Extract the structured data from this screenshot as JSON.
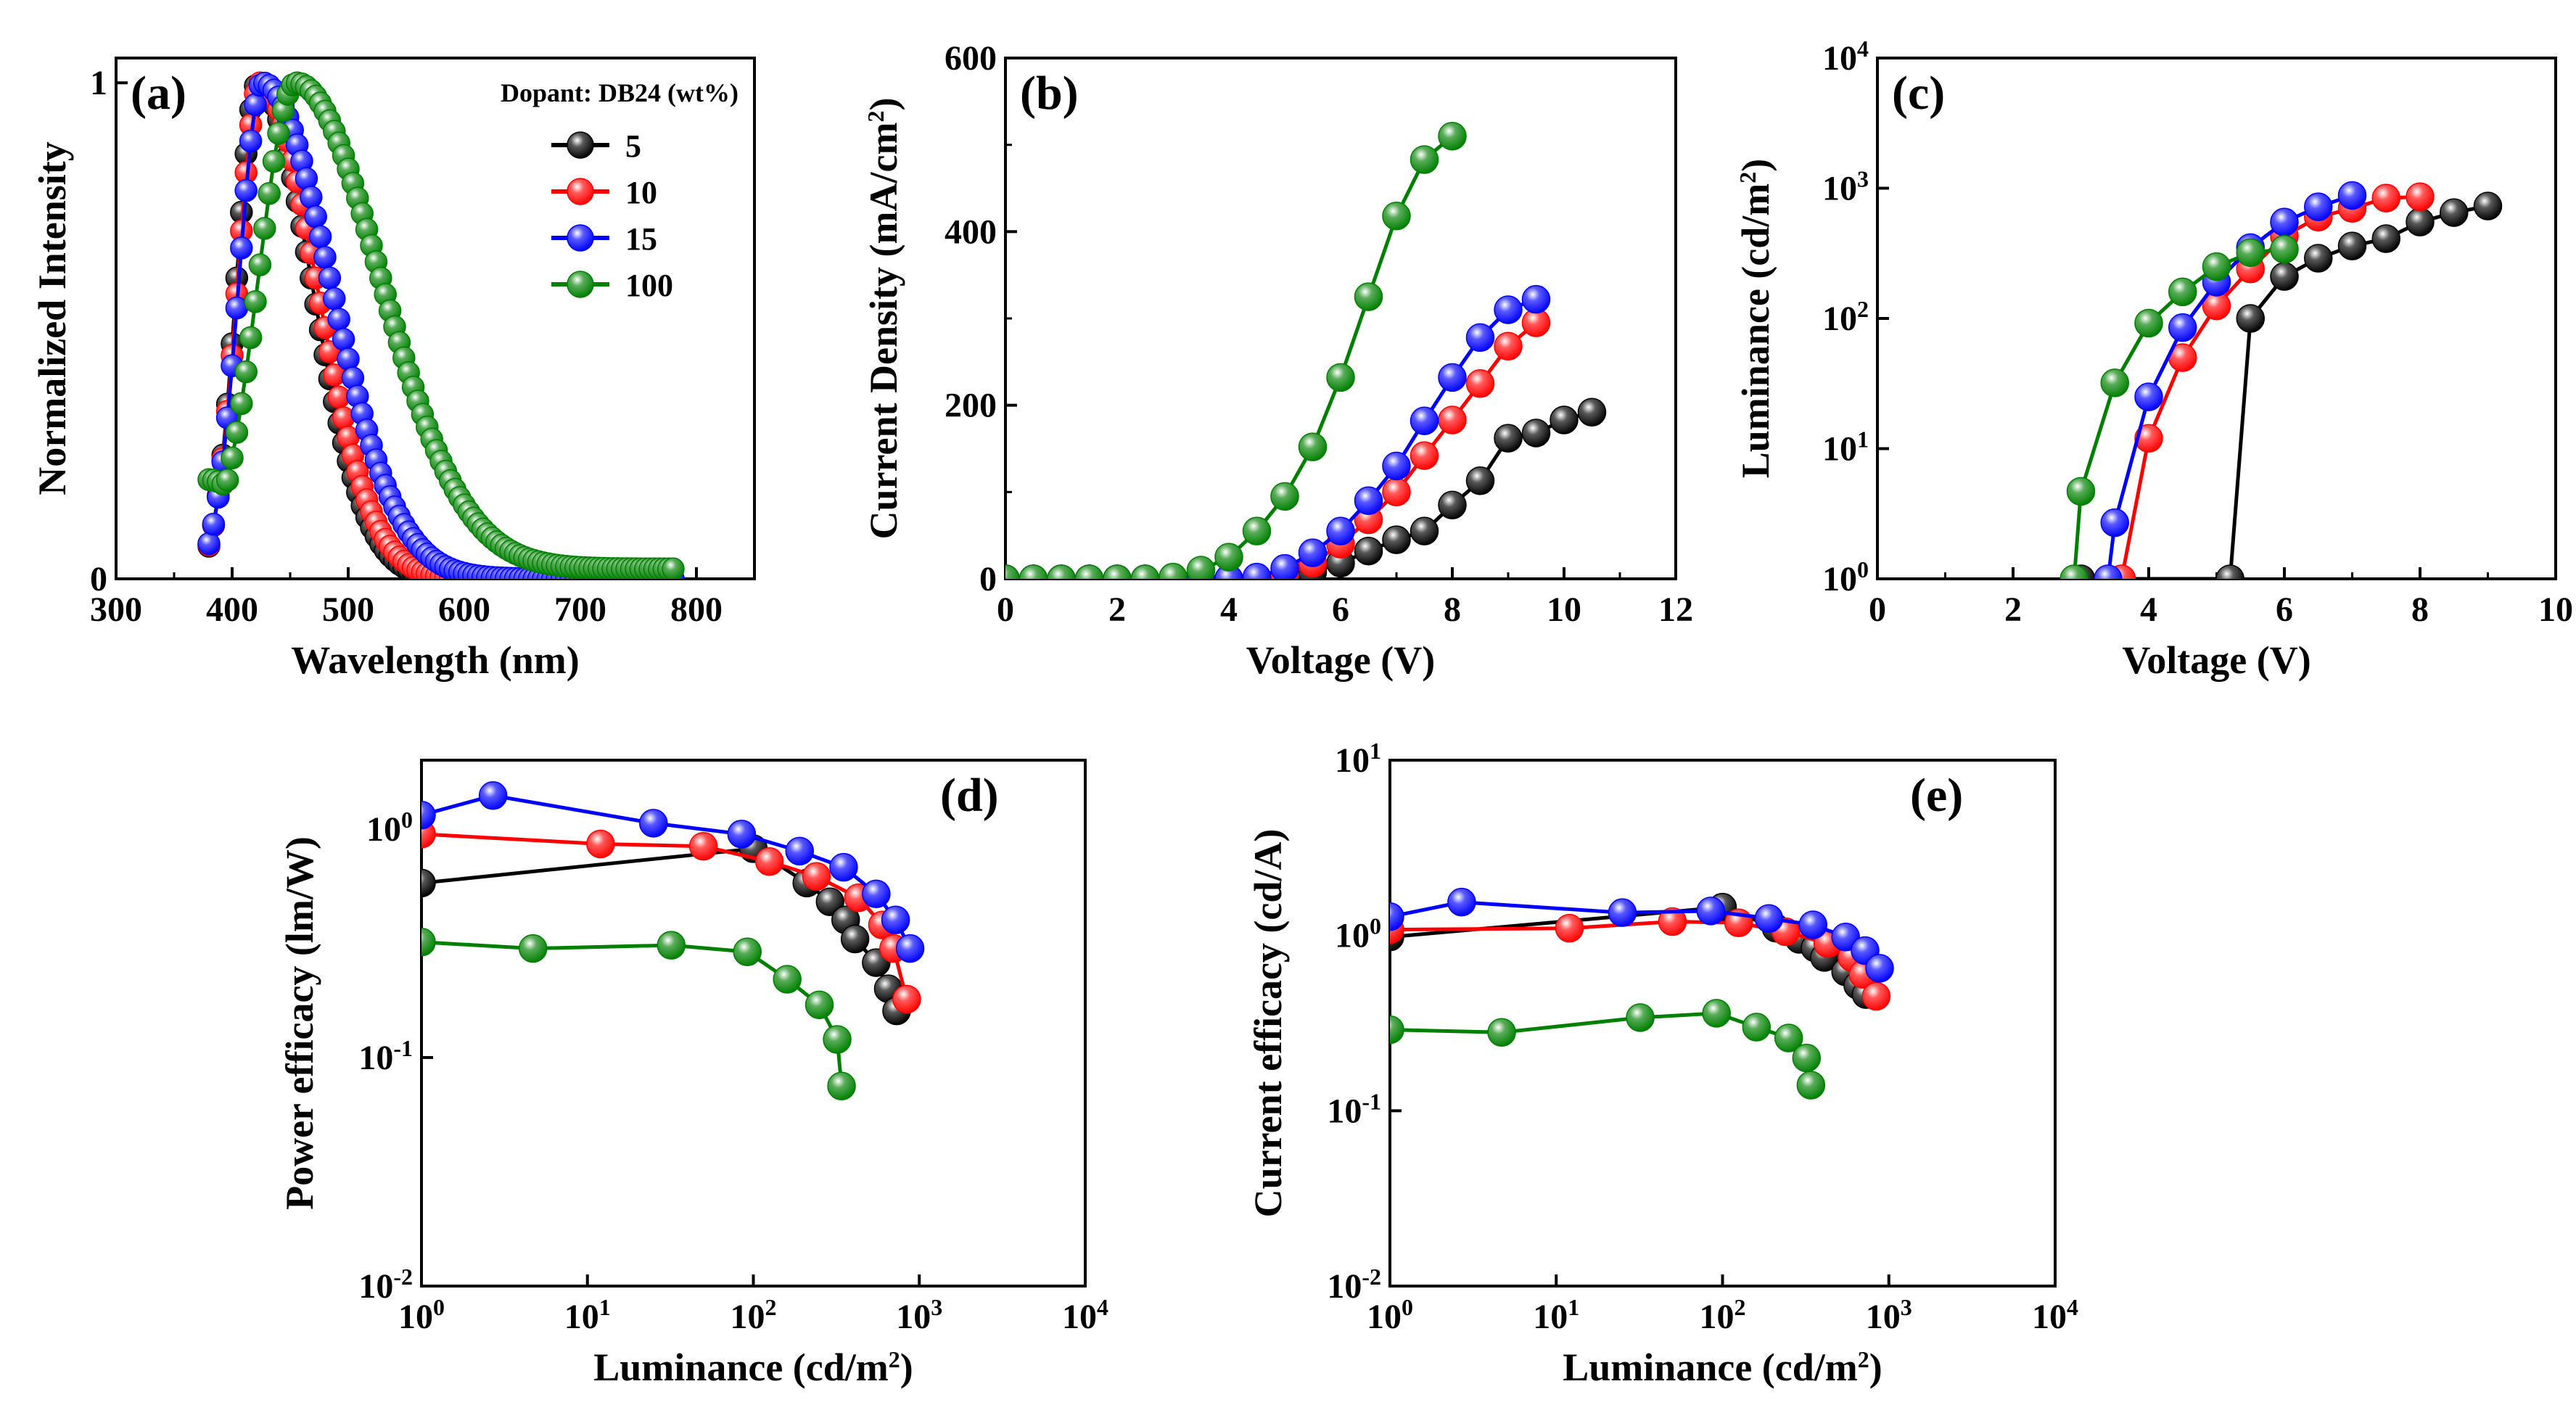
{
  "figure": {
    "series_colors": {
      "5": "#000000",
      "10": "#ff0000",
      "15": "#0000ff",
      "100": "#008000"
    }
  },
  "chart_data": [
    {
      "panel": "a",
      "type": "scatter",
      "panel_label": "(a)",
      "xlabel": "Wavelength (nm)",
      "ylabel": "Normalized Intensity",
      "xlim": [
        300,
        850
      ],
      "ylim": [
        0,
        1.05
      ],
      "xticks": [
        300,
        400,
        500,
        600,
        700,
        800
      ],
      "yticks": [
        0,
        1
      ],
      "legend_title": "Dopant: DB24 (wt%)",
      "legend_position": "top-right",
      "series_peaks": [
        {
          "name": "5",
          "color": "#000000",
          "peak_nm": 422,
          "sigma_left": 18,
          "sigma_right": 46,
          "baseline": 0.0,
          "start_nm": 380,
          "end_nm": 780
        },
        {
          "name": "10",
          "color": "#ff0000",
          "peak_nm": 424,
          "sigma_left": 19,
          "sigma_right": 48,
          "baseline": 0.0,
          "start_nm": 380,
          "end_nm": 780
        },
        {
          "name": "15",
          "color": "#0000ff",
          "peak_nm": 426,
          "sigma_left": 20,
          "sigma_right": 58,
          "baseline": 0.0,
          "start_nm": 380,
          "end_nm": 780
        },
        {
          "name": "100",
          "color": "#008000",
          "peak_nm": 455,
          "sigma_left": 32,
          "sigma_right": 72,
          "baseline": 0.02,
          "start_nm": 380,
          "end_nm": 780
        }
      ]
    },
    {
      "panel": "b",
      "type": "line",
      "panel_label": "(b)",
      "xlabel": "Voltage (V)",
      "ylabel": "Current Density (mA/cm²)",
      "xlim": [
        0,
        12
      ],
      "ylim": [
        0,
        600
      ],
      "xticks": [
        0,
        2,
        4,
        6,
        8,
        10,
        12
      ],
      "yticks": [
        0,
        200,
        400,
        600
      ],
      "series": [
        {
          "name": "5",
          "color": "#000000",
          "x": [
            0,
            0.5,
            1,
            1.5,
            2,
            2.5,
            3,
            3.5,
            4,
            4.5,
            5,
            5.5,
            6,
            6.5,
            7,
            7.5,
            8,
            8.5,
            9,
            9.5,
            10,
            10.5
          ],
          "y": [
            0,
            0,
            0,
            0,
            0,
            0,
            0,
            0,
            0,
            0,
            2,
            8,
            18,
            32,
            45,
            55,
            85,
            113,
            162,
            168,
            183,
            192
          ]
        },
        {
          "name": "10",
          "color": "#ff0000",
          "x": [
            0,
            0.5,
            1,
            1.5,
            2,
            2.5,
            3,
            3.5,
            4,
            4.5,
            5,
            5.5,
            6,
            6.5,
            7,
            7.5,
            8,
            8.5,
            9,
            9.5
          ],
          "y": [
            0,
            0,
            0,
            0,
            0,
            0,
            0,
            0,
            0,
            1,
            5,
            18,
            40,
            68,
            100,
            142,
            183,
            225,
            268,
            295
          ]
        },
        {
          "name": "15",
          "color": "#0000ff",
          "x": [
            0,
            0.5,
            1,
            1.5,
            2,
            2.5,
            3,
            3.5,
            4,
            4.5,
            5,
            5.5,
            6,
            6.5,
            7,
            7.5,
            8,
            8.5,
            9,
            9.5
          ],
          "y": [
            0,
            0,
            0,
            0,
            0,
            0,
            0,
            0,
            0,
            2,
            12,
            30,
            55,
            90,
            130,
            182,
            232,
            278,
            310,
            322
          ]
        },
        {
          "name": "100",
          "color": "#008000",
          "x": [
            0,
            0.5,
            1,
            1.5,
            2,
            2.5,
            3,
            3.5,
            4,
            4.5,
            5,
            5.5,
            6,
            6.5,
            7,
            7.5,
            8
          ],
          "y": [
            0,
            0,
            0,
            0,
            0,
            0,
            2,
            10,
            25,
            55,
            95,
            152,
            232,
            325,
            418,
            483,
            510
          ]
        }
      ]
    },
    {
      "panel": "c",
      "type": "line",
      "panel_label": "(c)",
      "xlabel": "Voltage (V)",
      "ylabel": "Luminance (cd/m²)",
      "xlim": [
        0,
        10
      ],
      "ylim": [
        1,
        10000
      ],
      "yscale": "log",
      "xticks": [
        0,
        2,
        4,
        6,
        8,
        10
      ],
      "yticks": [
        1,
        10,
        100,
        1000,
        10000
      ],
      "series": [
        {
          "name": "5",
          "color": "#000000",
          "x": [
            3.0,
            5.2,
            5.5,
            6.0,
            6.5,
            7.0,
            7.5,
            8.0,
            8.5,
            9.0
          ],
          "y": [
            1.0,
            1.0,
            100,
            210,
            290,
            360,
            410,
            550,
            650,
            730
          ]
        },
        {
          "name": "10",
          "color": "#ff0000",
          "x": [
            3.6,
            4.0,
            4.5,
            5.0,
            5.5,
            6.0,
            6.5,
            7.0,
            7.5,
            8.0
          ],
          "y": [
            1.0,
            12,
            50,
            125,
            240,
            430,
            600,
            700,
            840,
            860
          ]
        },
        {
          "name": "15",
          "color": "#0000ff",
          "x": [
            3.4,
            3.5,
            4.0,
            4.5,
            5.0,
            5.5,
            6.0,
            6.5,
            7.0
          ],
          "y": [
            1.0,
            2.7,
            25,
            85,
            190,
            350,
            550,
            720,
            880
          ]
        },
        {
          "name": "100",
          "color": "#008000",
          "x": [
            2.9,
            3.0,
            3.5,
            4.0,
            4.5,
            5.0,
            5.5,
            6.0
          ],
          "y": [
            1.0,
            4.7,
            32,
            92,
            160,
            250,
            320,
            340
          ]
        }
      ]
    },
    {
      "panel": "d",
      "type": "line",
      "panel_label": "(d)",
      "xlabel": "Luminance (cd/m²)",
      "ylabel": "Power efficacy (lm/W)",
      "xlim": [
        1,
        10000
      ],
      "ylim": [
        0.01,
        2
      ],
      "xscale": "log",
      "yscale": "log",
      "xticks": [
        1,
        10,
        100,
        1000,
        10000
      ],
      "yticks": [
        0.01,
        0.1,
        1
      ],
      "series": [
        {
          "name": "5",
          "color": "#000000",
          "x": [
            1,
            100,
            210,
            290,
            360,
            410,
            550,
            650,
            730
          ],
          "y": [
            0.58,
            0.82,
            0.58,
            0.48,
            0.4,
            0.33,
            0.26,
            0.2,
            0.16
          ]
        },
        {
          "name": "10",
          "color": "#ff0000",
          "x": [
            1,
            12,
            50,
            125,
            240,
            430,
            600,
            700,
            840
          ],
          "y": [
            0.95,
            0.86,
            0.84,
            0.72,
            0.62,
            0.5,
            0.38,
            0.3,
            0.18
          ]
        },
        {
          "name": "15",
          "color": "#0000ff",
          "x": [
            1,
            2.7,
            25,
            85,
            190,
            350,
            550,
            720,
            880
          ],
          "y": [
            1.15,
            1.4,
            1.06,
            0.95,
            0.8,
            0.68,
            0.52,
            0.4,
            0.3
          ]
        },
        {
          "name": "100",
          "color": "#008000",
          "x": [
            1,
            4.7,
            32,
            92,
            160,
            250,
            320,
            340
          ],
          "y": [
            0.32,
            0.3,
            0.31,
            0.29,
            0.22,
            0.17,
            0.12,
            0.075
          ]
        }
      ]
    },
    {
      "panel": "e",
      "type": "line",
      "panel_label": "(e)",
      "xlabel": "Luminance (cd/m²)",
      "ylabel": "Current efficacy (cd/A)",
      "xlim": [
        1,
        10000
      ],
      "ylim": [
        0.01,
        10
      ],
      "xscale": "log",
      "yscale": "log",
      "xticks": [
        1,
        10,
        100,
        1000,
        10000
      ],
      "yticks": [
        0.01,
        0.1,
        1,
        10
      ],
      "series": [
        {
          "name": "5",
          "color": "#000000",
          "x": [
            1,
            100,
            210,
            290,
            360,
            410,
            550,
            650,
            730
          ],
          "y": [
            0.98,
            1.45,
            1.1,
            0.95,
            0.85,
            0.75,
            0.62,
            0.52,
            0.46
          ]
        },
        {
          "name": "10",
          "color": "#ff0000",
          "x": [
            1,
            12,
            50,
            125,
            240,
            430,
            600,
            700,
            840
          ],
          "y": [
            1.08,
            1.1,
            1.2,
            1.18,
            1.05,
            0.9,
            0.75,
            0.6,
            0.45
          ]
        },
        {
          "name": "15",
          "color": "#0000ff",
          "x": [
            1,
            2.7,
            25,
            85,
            190,
            350,
            550,
            720,
            880
          ],
          "y": [
            1.28,
            1.55,
            1.35,
            1.38,
            1.25,
            1.15,
            0.98,
            0.82,
            0.65
          ]
        },
        {
          "name": "100",
          "color": "#008000",
          "x": [
            1,
            4.7,
            32,
            92,
            160,
            250,
            320,
            340
          ],
          "y": [
            0.29,
            0.28,
            0.34,
            0.36,
            0.3,
            0.26,
            0.2,
            0.14
          ]
        }
      ]
    }
  ]
}
